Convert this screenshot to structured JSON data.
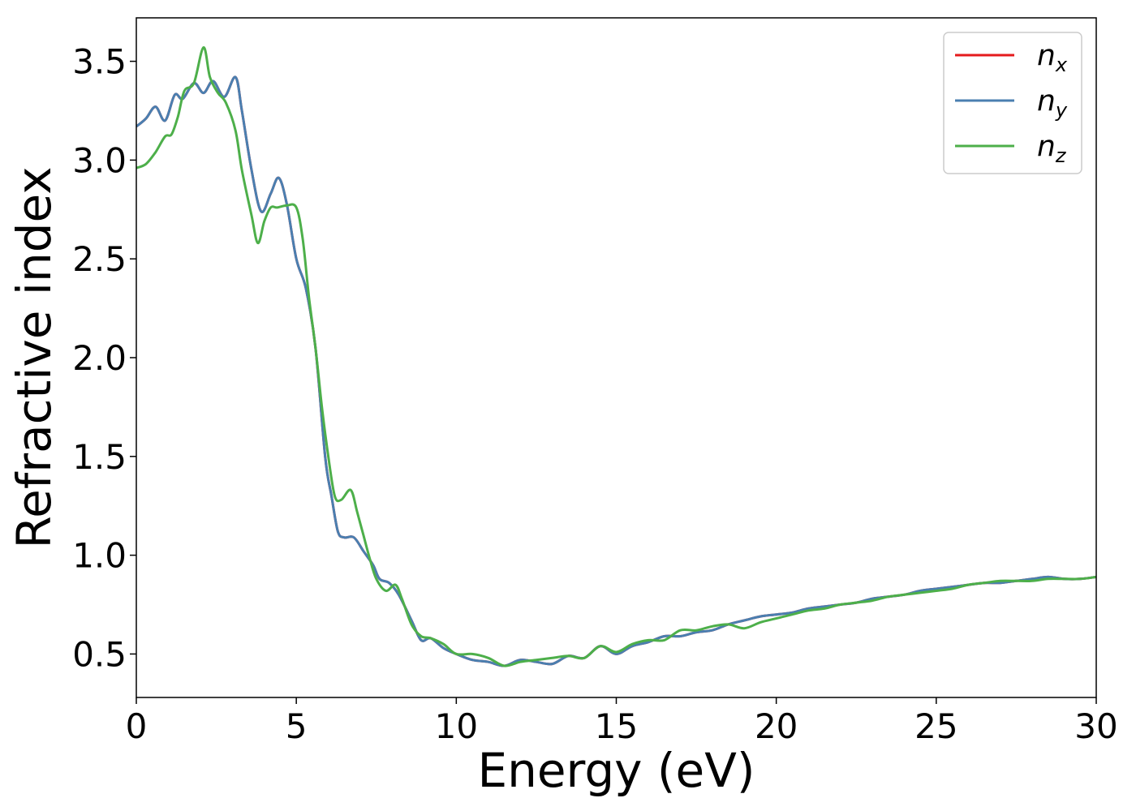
{
  "chart_data": {
    "type": "line",
    "title": "",
    "xlabel": "Energy (eV)",
    "ylabel": "Refractive index",
    "xlim": [
      0,
      30
    ],
    "ylim": [
      0.28,
      3.72
    ],
    "xticks": [
      0,
      5,
      10,
      15,
      20,
      25,
      30
    ],
    "yticks": [
      0.5,
      1.0,
      1.5,
      2.0,
      2.5,
      3.0,
      3.5
    ],
    "xtick_labels": [
      "0",
      "5",
      "10",
      "15",
      "20",
      "25",
      "30"
    ],
    "ytick_labels": [
      "0.5",
      "1.0",
      "1.5",
      "2.0",
      "2.5",
      "3.0",
      "3.5"
    ],
    "grid": false,
    "legend_position": "top-right",
    "series": [
      {
        "name": "n",
        "sub": "x",
        "color": "#e41a1c",
        "x": [
          0,
          0.3,
          0.6,
          0.9,
          1.2,
          1.45,
          1.8,
          2.1,
          2.4,
          2.75,
          3.1,
          3.3,
          3.6,
          3.9,
          4.2,
          4.45,
          4.7,
          5.0,
          5.3,
          5.6,
          5.9,
          6.1,
          6.3,
          6.5,
          6.8,
          7.1,
          7.4,
          7.6,
          7.9,
          8.2,
          8.6,
          8.9,
          9.2,
          9.6,
          10.0,
          10.5,
          11.0,
          11.5,
          12.0,
          12.5,
          13.0,
          13.5,
          14.0,
          14.5,
          15.0,
          15.5,
          16.0,
          16.5,
          17.0,
          17.5,
          18.0,
          18.5,
          19.0,
          19.5,
          20.0,
          20.5,
          21.0,
          21.5,
          22.0,
          22.5,
          23.0,
          23.5,
          24.0,
          24.5,
          25.0,
          25.5,
          26.0,
          26.5,
          27.0,
          27.5,
          28.0,
          28.5,
          29.0,
          29.5,
          30.0
        ],
        "y": [
          3.17,
          3.21,
          3.27,
          3.2,
          3.33,
          3.31,
          3.39,
          3.34,
          3.4,
          3.32,
          3.42,
          3.25,
          2.95,
          2.74,
          2.83,
          2.91,
          2.78,
          2.5,
          2.35,
          2.05,
          1.5,
          1.3,
          1.12,
          1.09,
          1.09,
          1.02,
          0.95,
          0.88,
          0.86,
          0.8,
          0.67,
          0.57,
          0.58,
          0.53,
          0.5,
          0.47,
          0.46,
          0.44,
          0.47,
          0.46,
          0.45,
          0.49,
          0.48,
          0.54,
          0.5,
          0.54,
          0.56,
          0.59,
          0.59,
          0.61,
          0.62,
          0.65,
          0.67,
          0.69,
          0.7,
          0.71,
          0.73,
          0.74,
          0.75,
          0.76,
          0.78,
          0.79,
          0.8,
          0.82,
          0.83,
          0.84,
          0.85,
          0.86,
          0.86,
          0.87,
          0.88,
          0.89,
          0.88,
          0.88,
          0.89
        ]
      },
      {
        "name": "n",
        "sub": "y",
        "color": "#4a7fb0",
        "x": [
          0,
          0.3,
          0.6,
          0.9,
          1.2,
          1.45,
          1.8,
          2.1,
          2.4,
          2.75,
          3.1,
          3.3,
          3.6,
          3.9,
          4.2,
          4.45,
          4.7,
          5.0,
          5.3,
          5.6,
          5.9,
          6.1,
          6.3,
          6.5,
          6.8,
          7.1,
          7.4,
          7.6,
          7.9,
          8.2,
          8.6,
          8.9,
          9.2,
          9.6,
          10.0,
          10.5,
          11.0,
          11.5,
          12.0,
          12.5,
          13.0,
          13.5,
          14.0,
          14.5,
          15.0,
          15.5,
          16.0,
          16.5,
          17.0,
          17.5,
          18.0,
          18.5,
          19.0,
          19.5,
          20.0,
          20.5,
          21.0,
          21.5,
          22.0,
          22.5,
          23.0,
          23.5,
          24.0,
          24.5,
          25.0,
          25.5,
          26.0,
          26.5,
          27.0,
          27.5,
          28.0,
          28.5,
          29.0,
          29.5,
          30.0
        ],
        "y": [
          3.17,
          3.21,
          3.27,
          3.2,
          3.33,
          3.31,
          3.39,
          3.34,
          3.4,
          3.32,
          3.42,
          3.25,
          2.95,
          2.74,
          2.83,
          2.91,
          2.78,
          2.5,
          2.35,
          2.05,
          1.5,
          1.3,
          1.12,
          1.09,
          1.09,
          1.02,
          0.95,
          0.88,
          0.86,
          0.8,
          0.67,
          0.57,
          0.58,
          0.53,
          0.5,
          0.47,
          0.46,
          0.44,
          0.47,
          0.46,
          0.45,
          0.49,
          0.48,
          0.54,
          0.5,
          0.54,
          0.56,
          0.59,
          0.59,
          0.61,
          0.62,
          0.65,
          0.67,
          0.69,
          0.7,
          0.71,
          0.73,
          0.74,
          0.75,
          0.76,
          0.78,
          0.79,
          0.8,
          0.82,
          0.83,
          0.84,
          0.85,
          0.86,
          0.86,
          0.87,
          0.88,
          0.89,
          0.88,
          0.88,
          0.89
        ]
      },
      {
        "name": "n",
        "sub": "z",
        "color": "#4daf4a",
        "x": [
          0,
          0.3,
          0.6,
          0.9,
          1.1,
          1.3,
          1.5,
          1.8,
          2.1,
          2.3,
          2.55,
          2.8,
          3.1,
          3.3,
          3.6,
          3.8,
          4.0,
          4.2,
          4.4,
          4.7,
          5.0,
          5.2,
          5.4,
          5.6,
          5.8,
          6.0,
          6.2,
          6.4,
          6.7,
          6.9,
          7.1,
          7.3,
          7.5,
          7.8,
          8.1,
          8.3,
          8.6,
          8.9,
          9.2,
          9.6,
          10.0,
          10.5,
          11.0,
          11.5,
          12.0,
          12.5,
          13.0,
          13.5,
          14.0,
          14.5,
          15.0,
          15.5,
          16.0,
          16.5,
          17.0,
          17.5,
          18.0,
          18.5,
          19.0,
          19.5,
          20.0,
          20.5,
          21.0,
          21.5,
          22.0,
          22.5,
          23.0,
          23.5,
          24.0,
          24.5,
          25.0,
          25.5,
          26.0,
          26.5,
          27.0,
          27.5,
          28.0,
          28.5,
          29.0,
          29.5,
          30.0
        ],
        "y": [
          2.96,
          2.98,
          3.04,
          3.12,
          3.13,
          3.22,
          3.35,
          3.39,
          3.57,
          3.42,
          3.34,
          3.29,
          3.15,
          2.95,
          2.72,
          2.58,
          2.69,
          2.76,
          2.76,
          2.77,
          2.76,
          2.6,
          2.3,
          2.05,
          1.75,
          1.5,
          1.3,
          1.28,
          1.33,
          1.22,
          1.1,
          0.98,
          0.88,
          0.82,
          0.85,
          0.78,
          0.65,
          0.59,
          0.58,
          0.55,
          0.5,
          0.5,
          0.48,
          0.44,
          0.46,
          0.47,
          0.48,
          0.49,
          0.48,
          0.54,
          0.51,
          0.55,
          0.57,
          0.57,
          0.62,
          0.62,
          0.64,
          0.65,
          0.63,
          0.66,
          0.68,
          0.7,
          0.72,
          0.73,
          0.75,
          0.76,
          0.77,
          0.79,
          0.8,
          0.81,
          0.82,
          0.83,
          0.85,
          0.86,
          0.87,
          0.87,
          0.87,
          0.88,
          0.88,
          0.88,
          0.89
        ]
      }
    ]
  }
}
